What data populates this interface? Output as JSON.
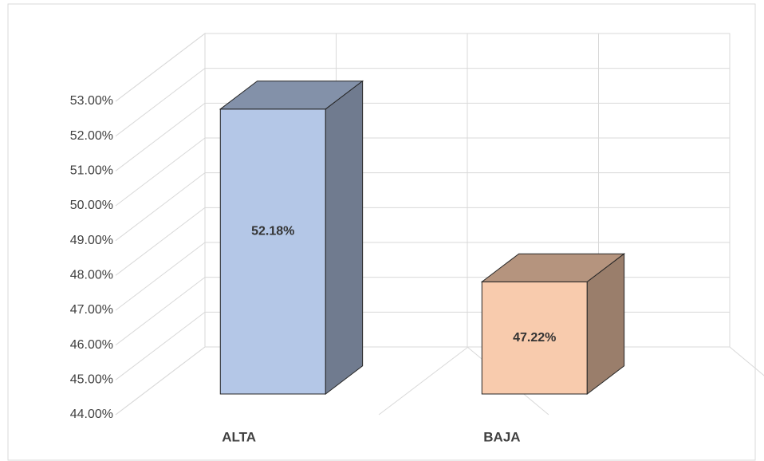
{
  "chart_data": {
    "type": "bar3d",
    "categories": [
      "ALTA",
      "BAJA"
    ],
    "values": [
      52.18,
      47.22
    ],
    "value_labels": [
      "52.18%",
      "47.22%"
    ],
    "colors": [
      "#b4c7e7",
      "#f8cbad"
    ],
    "ylim": [
      44,
      53
    ],
    "yticks": [
      {
        "value": 44,
        "label": "44.00%"
      },
      {
        "value": 45,
        "label": "45.00%"
      },
      {
        "value": 46,
        "label": "46.00%"
      },
      {
        "value": 47,
        "label": "47.00%"
      },
      {
        "value": 48,
        "label": "48.00%"
      },
      {
        "value": 49,
        "label": "49.00%"
      },
      {
        "value": 50,
        "label": "50.00%"
      },
      {
        "value": 51,
        "label": "51.00%"
      },
      {
        "value": 52,
        "label": "52.00%"
      },
      {
        "value": 53,
        "label": "53.00%"
      }
    ],
    "grid": true
  }
}
